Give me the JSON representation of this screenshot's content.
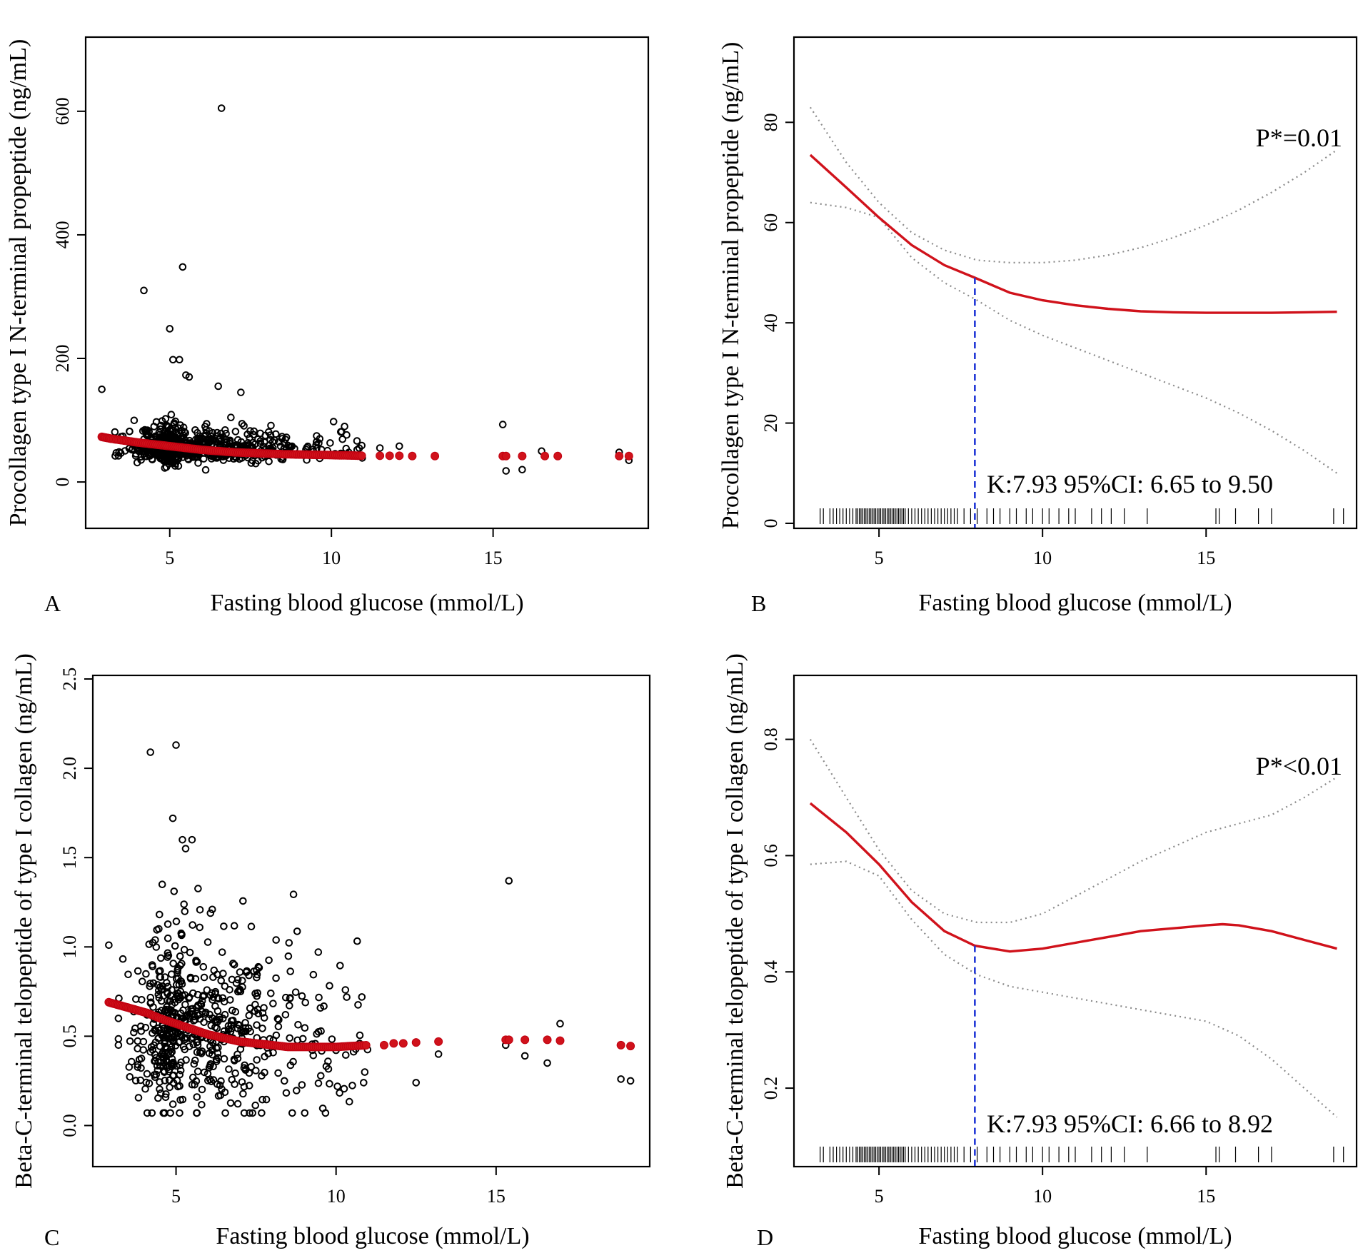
{
  "chart_data": [
    {
      "panel": "A",
      "type": "scatter",
      "xlabel": "Fasting blood glucose (mmol/L)",
      "ylabel": "Procollagen type I N-terminal propeptide (ng/mL)",
      "xlim": [
        2.4,
        19.8
      ],
      "ylim": [
        -75,
        720
      ],
      "x_ticks": [
        5,
        10,
        15
      ],
      "y_ticks": [
        0,
        200,
        400,
        600
      ],
      "fitted": {
        "x": [
          2.9,
          3.2,
          3.6,
          4.0,
          4.5,
          5.0,
          5.5,
          6.0,
          6.5,
          7.0,
          7.5,
          8.0,
          8.5,
          9.0,
          9.5,
          10.0,
          10.5,
          11.0
        ],
        "y": [
          73,
          70,
          67,
          64,
          61,
          58,
          55,
          52,
          50,
          48,
          47,
          46,
          45,
          44.5,
          44,
          43.5,
          43,
          42.5
        ]
      },
      "fitted_isolated": {
        "x": [
          11.5,
          11.8,
          12.1,
          12.5,
          13.2,
          15.3,
          15.4,
          15.9,
          16.6,
          17.0,
          18.9,
          19.2
        ],
        "y": [
          42.5,
          42.5,
          42.5,
          42,
          42,
          42,
          42,
          42,
          42,
          42,
          42,
          42
        ]
      },
      "outliers": {
        "x": [
          2.9,
          4.2,
          5.0,
          5.1,
          5.3,
          5.4,
          5.5,
          5.6,
          6.5,
          6.6,
          7.2,
          15.3,
          16.5,
          11.5,
          12.1,
          15.9,
          15.4,
          19.2,
          18.9
        ],
        "y": [
          150,
          310,
          248,
          198,
          198,
          348,
          173,
          170,
          155,
          605,
          145,
          93,
          50,
          55,
          58,
          20,
          18,
          35,
          48
        ]
      }
    },
    {
      "panel": "B",
      "type": "line",
      "xlabel": "Fasting blood glucose (mmol/L)",
      "ylabel": "Procollagen type I N-terminal propeptide (ng/mL)",
      "xlim": [
        2.4,
        19.6
      ],
      "ylim": [
        -1,
        97
      ],
      "x_ticks": [
        5,
        10,
        15
      ],
      "y_ticks": [
        0,
        20,
        40,
        60,
        80
      ],
      "annotation_p": "P*=0.01",
      "annotation_k": "K:7.93   95%CI: 6.65 to 9.50",
      "knot": 7.93,
      "knot_y": 49,
      "fit": {
        "x": [
          2.9,
          4.0,
          5.0,
          6.0,
          7.0,
          7.93,
          9.0,
          10.0,
          11.0,
          12.0,
          13.0,
          14.0,
          15.0,
          16.0,
          17.0,
          18.0,
          19.0
        ],
        "y": [
          73.5,
          67,
          61,
          55.5,
          51.5,
          49,
          46,
          44.5,
          43.5,
          42.8,
          42.3,
          42.1,
          42,
          42,
          42,
          42.1,
          42.2
        ]
      },
      "ci_upper": {
        "x": [
          2.9,
          4.0,
          5.0,
          6.0,
          7.0,
          8.0,
          9.0,
          10.0,
          11.0,
          12.0,
          13.0,
          14.0,
          15.0,
          16.0,
          17.0,
          18.0,
          19.0
        ],
        "y": [
          83,
          72,
          64,
          58,
          54.5,
          52.5,
          52,
          52,
          52.5,
          53.5,
          55,
          57,
          59.5,
          62.5,
          66,
          70,
          74.5
        ]
      },
      "ci_lower": {
        "x": [
          2.9,
          4.0,
          5.0,
          6.0,
          7.0,
          8.0,
          9.0,
          10.0,
          11.0,
          12.0,
          13.0,
          14.0,
          15.0,
          16.0,
          17.0,
          18.0,
          19.0
        ],
        "y": [
          64,
          63,
          61,
          53,
          48,
          44.5,
          40.5,
          37.5,
          35,
          32.5,
          30,
          27.5,
          25,
          22,
          18.5,
          14.5,
          10
        ]
      },
      "rug": [
        3.2,
        3.3,
        3.5,
        3.6,
        3.7,
        3.8,
        3.9,
        4.0,
        4.1,
        4.2,
        4.3,
        4.35,
        4.4,
        4.45,
        4.5,
        4.55,
        4.6,
        4.65,
        4.7,
        4.75,
        4.8,
        4.85,
        4.9,
        4.95,
        5.0,
        5.05,
        5.1,
        5.15,
        5.2,
        5.25,
        5.3,
        5.35,
        5.4,
        5.45,
        5.5,
        5.55,
        5.6,
        5.65,
        5.7,
        5.75,
        5.8,
        5.9,
        6.0,
        6.1,
        6.2,
        6.3,
        6.4,
        6.5,
        6.6,
        6.7,
        6.8,
        6.9,
        7.0,
        7.1,
        7.2,
        7.3,
        7.4,
        7.6,
        7.8,
        8.0,
        8.3,
        8.5,
        8.7,
        9.0,
        9.2,
        9.5,
        9.7,
        10.0,
        10.2,
        10.5,
        10.8,
        11.0,
        11.5,
        11.8,
        12.1,
        12.5,
        13.2,
        15.3,
        15.4,
        15.9,
        16.6,
        17.0,
        18.9,
        19.2
      ]
    },
    {
      "panel": "C",
      "type": "scatter",
      "xlabel": "Fasting blood glucose (mmol/L)",
      "ylabel": "Beta-C-terminal telopeptide of type I collagen (ng/mL)",
      "xlim": [
        2.4,
        19.8
      ],
      "ylim": [
        -0.23,
        2.52
      ],
      "x_ticks": [
        5,
        10,
        15
      ],
      "y_ticks": [
        0.0,
        0.5,
        1.0,
        1.5,
        2.0,
        2.5
      ],
      "y_tick_labels": [
        "0.0",
        "0.5",
        "1.0",
        "1.5",
        "2.0",
        "2.5"
      ],
      "fitted": {
        "x": [
          2.9,
          3.3,
          3.7,
          4.1,
          4.5,
          5.0,
          5.5,
          6.0,
          6.5,
          7.0,
          7.5,
          8.0,
          8.5,
          9.0,
          9.5,
          10.0,
          10.5,
          11.0
        ],
        "y": [
          0.69,
          0.67,
          0.65,
          0.63,
          0.6,
          0.57,
          0.54,
          0.51,
          0.49,
          0.47,
          0.46,
          0.45,
          0.44,
          0.44,
          0.44,
          0.44,
          0.445,
          0.45
        ]
      },
      "fitted_isolated": {
        "x": [
          11.5,
          11.8,
          12.1,
          12.5,
          13.2,
          15.3,
          15.4,
          15.9,
          16.6,
          17.0,
          18.9,
          19.2
        ],
        "y": [
          0.45,
          0.46,
          0.46,
          0.465,
          0.47,
          0.48,
          0.48,
          0.48,
          0.48,
          0.475,
          0.45,
          0.445
        ]
      },
      "outliers": {
        "x": [
          2.9,
          4.2,
          5.0,
          4.9,
          5.2,
          5.3,
          5.5,
          15.4,
          13.2,
          12.5,
          15.9,
          16.6,
          17.0,
          18.9,
          19.2,
          15.3
        ],
        "y": [
          1.01,
          2.09,
          2.13,
          1.72,
          1.6,
          1.55,
          1.6,
          1.37,
          0.4,
          0.24,
          0.39,
          0.35,
          0.57,
          0.26,
          0.25,
          0.45
        ]
      }
    },
    {
      "panel": "D",
      "type": "line",
      "xlabel": "Fasting blood glucose (mmol/L)",
      "ylabel": "Beta-C-terminal telopeptide of type I collagen (ng/mL)",
      "xlim": [
        2.4,
        19.6
      ],
      "ylim": [
        0.065,
        0.91
      ],
      "x_ticks": [
        5,
        10,
        15
      ],
      "y_ticks": [
        0.2,
        0.4,
        0.6,
        0.8
      ],
      "y_tick_labels": [
        "0.2",
        "0.4",
        "0.6",
        "0.8"
      ],
      "annotation_p": "P*<0.01",
      "annotation_k": "K:7.93    95%CI: 6.66 to 8.92",
      "knot": 7.93,
      "knot_y": 0.445,
      "fit": {
        "x": [
          2.9,
          4.0,
          5.0,
          6.0,
          7.0,
          7.93,
          9.0,
          10.0,
          11.0,
          12.0,
          13.0,
          14.0,
          15.0,
          15.5,
          16.0,
          17.0,
          18.0,
          19.0
        ],
        "y": [
          0.69,
          0.64,
          0.585,
          0.52,
          0.47,
          0.445,
          0.435,
          0.44,
          0.45,
          0.46,
          0.47,
          0.475,
          0.48,
          0.482,
          0.48,
          0.47,
          0.455,
          0.44
        ]
      },
      "ci_upper": {
        "x": [
          2.9,
          4.0,
          5.0,
          6.0,
          7.0,
          8.0,
          9.0,
          10.0,
          11.0,
          12.0,
          13.0,
          14.0,
          15.0,
          16.0,
          17.0,
          18.0,
          19.0
        ],
        "y": [
          0.8,
          0.7,
          0.61,
          0.54,
          0.5,
          0.485,
          0.485,
          0.5,
          0.53,
          0.56,
          0.59,
          0.615,
          0.64,
          0.655,
          0.67,
          0.7,
          0.735
        ]
      },
      "ci_lower": {
        "x": [
          2.9,
          4.0,
          5.0,
          6.0,
          7.0,
          8.0,
          9.0,
          10.0,
          11.0,
          12.0,
          13.0,
          14.0,
          15.0,
          16.0,
          17.0,
          18.0,
          19.0
        ],
        "y": [
          0.585,
          0.59,
          0.565,
          0.49,
          0.43,
          0.395,
          0.375,
          0.365,
          0.355,
          0.345,
          0.335,
          0.325,
          0.315,
          0.29,
          0.25,
          0.2,
          0.15
        ]
      },
      "rug": [
        3.2,
        3.3,
        3.5,
        3.6,
        3.7,
        3.8,
        3.9,
        4.0,
        4.1,
        4.2,
        4.3,
        4.35,
        4.4,
        4.45,
        4.5,
        4.55,
        4.6,
        4.65,
        4.7,
        4.75,
        4.8,
        4.85,
        4.9,
        4.95,
        5.0,
        5.05,
        5.1,
        5.15,
        5.2,
        5.25,
        5.3,
        5.35,
        5.4,
        5.45,
        5.5,
        5.55,
        5.6,
        5.65,
        5.7,
        5.75,
        5.8,
        5.9,
        6.0,
        6.1,
        6.2,
        6.3,
        6.4,
        6.5,
        6.6,
        6.7,
        6.8,
        6.9,
        7.0,
        7.1,
        7.2,
        7.3,
        7.4,
        7.6,
        7.8,
        8.0,
        8.3,
        8.5,
        8.7,
        9.0,
        9.2,
        9.5,
        9.7,
        10.0,
        10.2,
        10.5,
        10.8,
        11.0,
        11.5,
        11.8,
        12.1,
        12.5,
        13.2,
        15.3,
        15.4,
        15.9,
        16.6,
        17.0,
        18.9,
        19.2
      ]
    }
  ]
}
